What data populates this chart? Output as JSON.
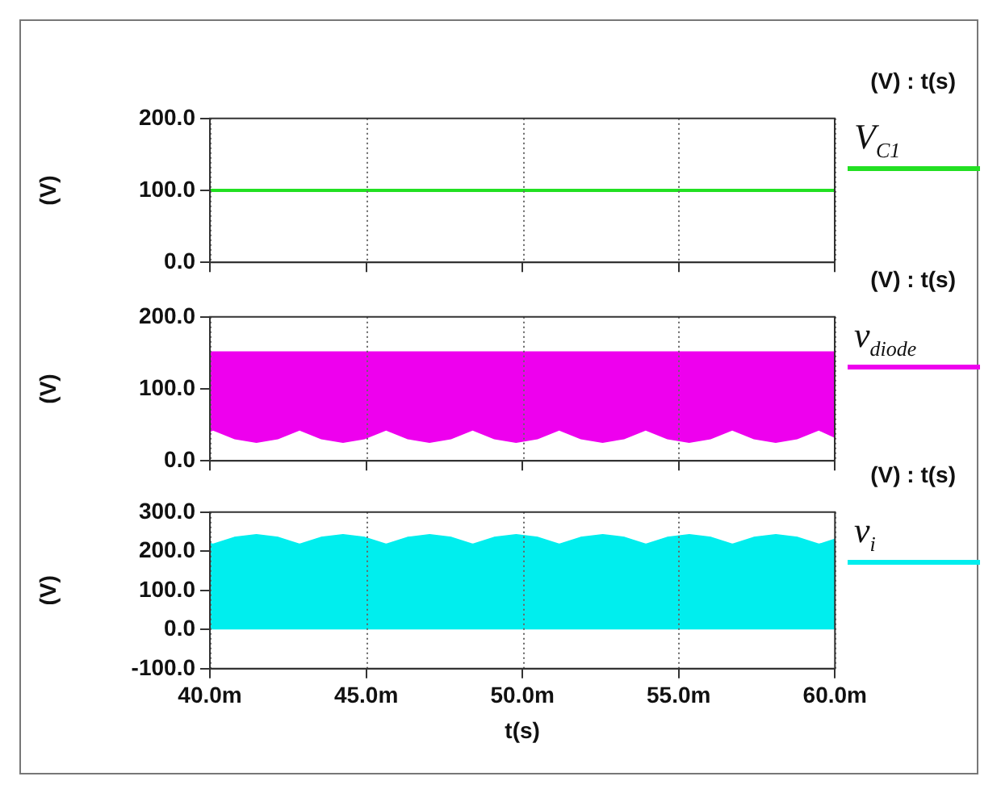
{
  "chart_data": [
    {
      "type": "line",
      "ylabel": "(V)",
      "annotations": [
        "(V) : t(s)"
      ],
      "xlim": [
        40,
        60
      ],
      "xticks": [
        40,
        45,
        50,
        55,
        60
      ],
      "ylim": [
        0,
        200
      ],
      "yticks": [
        {
          "value": 0,
          "label": "0.0"
        },
        {
          "value": 100,
          "label": "100.0"
        },
        {
          "value": 200,
          "label": "200.0"
        }
      ],
      "grid": "x",
      "legend": "right",
      "tick_labels": "y",
      "marker": "none",
      "x": [
        40,
        60
      ],
      "series": [
        {
          "name": "V$_{C1}$",
          "color": "#22e022",
          "values": [
            100,
            100
          ]
        }
      ]
    },
    {
      "type": "line",
      "ylabel": "(V)",
      "annotations": [
        "(V) : t(s)"
      ],
      "xlim": [
        40,
        60
      ],
      "xticks": [
        40,
        45,
        50,
        55,
        60
      ],
      "ylim": [
        0,
        200
      ],
      "yticks": [
        {
          "value": 0,
          "label": "0.0"
        },
        {
          "value": 100,
          "label": "100.0"
        },
        {
          "value": 200,
          "label": "200.0"
        }
      ],
      "grid": "x",
      "legend": "right",
      "tick_labels": "y",
      "marker": "none",
      "x": [
        40,
        40.1,
        40.79,
        41.49,
        42.18,
        42.87,
        43.56,
        44.26,
        44.95,
        45.64,
        46.33,
        47.03,
        47.72,
        48.41,
        49.1,
        49.8,
        50.49,
        51.18,
        51.87,
        52.57,
        53.26,
        53.95,
        54.64,
        55.34,
        56.03,
        56.72,
        57.41,
        58.11,
        58.8,
        59.49,
        60
      ],
      "series": [
        {
          "name": "v$_{diode}$",
          "color": "#ee00ee",
          "values": [
            150,
            150,
            150,
            150,
            150,
            150,
            150,
            150,
            150,
            150,
            150,
            150,
            150,
            150,
            150,
            150,
            150,
            150,
            150,
            150,
            150,
            150,
            150,
            150,
            150,
            150,
            150,
            150,
            150,
            150,
            150
          ],
          "upper": [
            150,
            150,
            150,
            150,
            150,
            150,
            150,
            150,
            150,
            150,
            150,
            150,
            150,
            150,
            150,
            150,
            150,
            150,
            150,
            150,
            150,
            150,
            150,
            150,
            150,
            150,
            150,
            150,
            150,
            150,
            150
          ],
          "lower": [
            40,
            42,
            30,
            25,
            30,
            42,
            30,
            25,
            30,
            42,
            30,
            25,
            30,
            42,
            30,
            25,
            30,
            42,
            30,
            25,
            30,
            42,
            30,
            25,
            30,
            42,
            30,
            25,
            30,
            42,
            32
          ]
        }
      ]
    },
    {
      "type": "line",
      "ylabel": "(V)",
      "xlabel": "t(s)",
      "annotations": [
        "(V) : t(s)"
      ],
      "xlim": [
        40,
        60
      ],
      "xticks": [
        {
          "value": 40,
          "label": "40.0m"
        },
        {
          "value": 45,
          "label": "45.0m"
        },
        {
          "value": 50,
          "label": "50.0m"
        },
        {
          "value": 55,
          "label": "55.0m"
        },
        {
          "value": 60,
          "label": "60.0m"
        }
      ],
      "ylim": [
        -100,
        300
      ],
      "yticks": [
        {
          "value": -100,
          "label": "-100.0"
        },
        {
          "value": 0,
          "label": "0.0"
        },
        {
          "value": 100,
          "label": "100.0"
        },
        {
          "value": 200,
          "label": "200.0"
        },
        {
          "value": 300,
          "label": "300.0"
        }
      ],
      "grid": "x",
      "legend": "right",
      "marker": "none",
      "x": [
        40,
        40.1,
        40.79,
        41.49,
        42.18,
        42.87,
        43.56,
        44.26,
        44.95,
        45.64,
        46.33,
        47.03,
        47.72,
        48.41,
        49.1,
        49.8,
        50.49,
        51.18,
        51.87,
        52.57,
        53.26,
        53.95,
        54.64,
        55.34,
        56.03,
        56.72,
        57.41,
        58.11,
        58.8,
        59.49,
        60
      ],
      "series": [
        {
          "name": "v$_{i}$",
          "color": "#00eeee",
          "values": [
            218,
            215,
            233,
            240,
            233,
            215,
            233,
            240,
            233,
            215,
            233,
            240,
            233,
            215,
            233,
            240,
            233,
            215,
            233,
            240,
            233,
            215,
            233,
            240,
            233,
            215,
            233,
            240,
            233,
            215,
            228
          ],
          "upper": [
            218,
            215,
            233,
            240,
            233,
            215,
            233,
            240,
            233,
            215,
            233,
            240,
            233,
            215,
            233,
            240,
            233,
            215,
            233,
            240,
            233,
            215,
            233,
            240,
            233,
            215,
            233,
            240,
            233,
            215,
            228
          ],
          "lower": [
            0,
            0,
            0,
            0,
            0,
            0,
            0,
            0,
            0,
            0,
            0,
            0,
            0,
            0,
            0,
            0,
            0,
            0,
            0,
            0,
            0,
            0,
            0,
            0,
            0,
            0,
            0,
            0,
            0,
            0,
            0
          ]
        }
      ]
    }
  ]
}
